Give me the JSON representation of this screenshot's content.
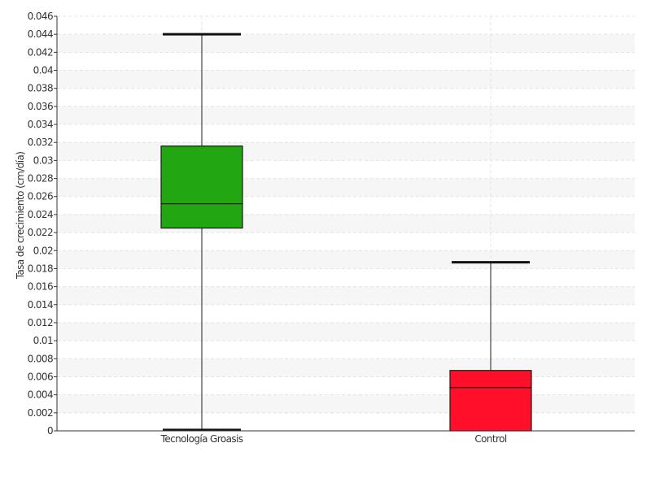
{
  "chart_data": {
    "type": "box",
    "title": "",
    "xlabel": "",
    "ylabel": "Tasa de crecimiento (cm/día)",
    "ylim": [
      0,
      0.046
    ],
    "ytick_step": 0.002,
    "y_ticks": [
      "0",
      "0.002",
      "0.004",
      "0.006",
      "0.008",
      "0.01",
      "0.012",
      "0.014",
      "0.016",
      "0.018",
      "0.02",
      "0.022",
      "0.024",
      "0.026",
      "0.028",
      "0.03",
      "0.032",
      "0.034",
      "0.036",
      "0.038",
      "0.04",
      "0.042",
      "0.044",
      "0.046"
    ],
    "categories": [
      "Tecnología Groasis",
      "Control"
    ],
    "boxes": [
      {
        "category": "Tecnología Groasis",
        "min": 0.0001,
        "q1": 0.0225,
        "median": 0.0252,
        "q3": 0.0316,
        "max": 0.044,
        "color": "#22a611"
      },
      {
        "category": "Control",
        "min": 0.0,
        "q1": 0.0,
        "median": 0.0048,
        "q3": 0.0067,
        "max": 0.0187,
        "color": "#ff0f2a"
      }
    ],
    "grid": true,
    "legend": "none"
  }
}
